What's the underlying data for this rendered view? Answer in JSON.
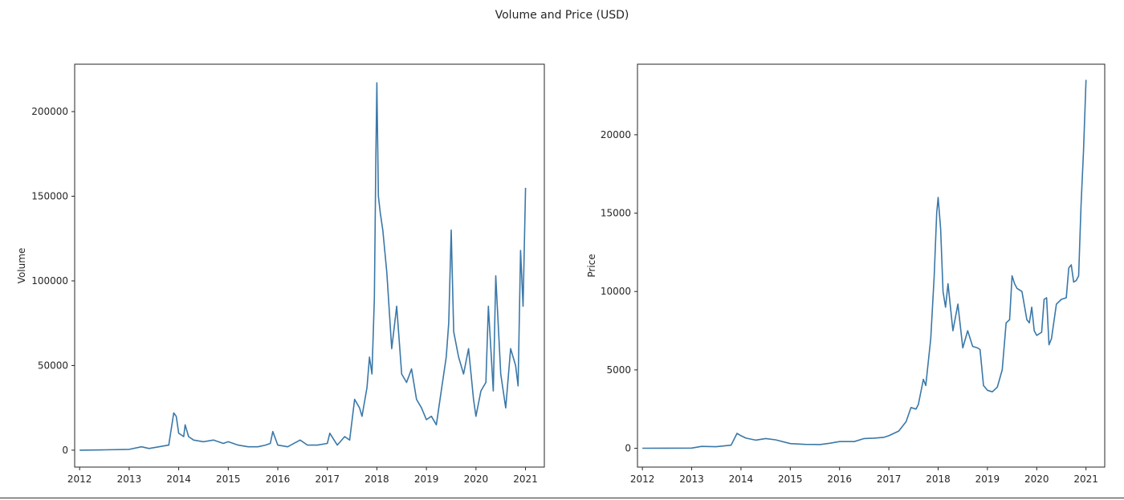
{
  "figure": {
    "title": "Volume and Price (USD)",
    "line_color": "#3a78a8"
  },
  "chart_data": [
    {
      "type": "line",
      "title": "",
      "xlabel": "",
      "ylabel": "Volume",
      "xlim": [
        2011.9,
        2021.38
      ],
      "ylim": [
        -10000,
        228000
      ],
      "x_ticks": [
        "2012",
        "2013",
        "2014",
        "2015",
        "2016",
        "2017",
        "2018",
        "2019",
        "2020",
        "2021"
      ],
      "y_ticks": [
        0,
        50000,
        100000,
        150000,
        200000
      ],
      "grid": false,
      "series": [
        {
          "x": [
            2012.0,
            2012.5,
            2013.0,
            2013.25,
            2013.4,
            2013.6,
            2013.8,
            2013.9,
            2013.95,
            2014.0,
            2014.05,
            2014.1,
            2014.13,
            2014.2,
            2014.3,
            2014.5,
            2014.7,
            2014.9,
            2015.0,
            2015.2,
            2015.4,
            2015.6,
            2015.75,
            2015.85,
            2015.9,
            2016.0,
            2016.2,
            2016.45,
            2016.6,
            2016.8,
            2017.0,
            2017.05,
            2017.2,
            2017.35,
            2017.45,
            2017.55,
            2017.65,
            2017.7,
            2017.8,
            2017.85,
            2017.9,
            2017.95,
            2017.98,
            2018.0,
            2018.03,
            2018.07,
            2018.12,
            2018.2,
            2018.3,
            2018.4,
            2018.5,
            2018.6,
            2018.7,
            2018.8,
            2018.9,
            2019.0,
            2019.1,
            2019.2,
            2019.3,
            2019.4,
            2019.45,
            2019.5,
            2019.55,
            2019.65,
            2019.75,
            2019.85,
            2019.95,
            2020.0,
            2020.1,
            2020.2,
            2020.25,
            2020.35,
            2020.4,
            2020.5,
            2020.6,
            2020.7,
            2020.8,
            2020.85,
            2020.9,
            2020.95,
            2021.0
          ],
          "y": [
            0,
            200,
            500,
            2000,
            1000,
            2000,
            3000,
            22000,
            20000,
            10000,
            9000,
            8000,
            15000,
            8000,
            6000,
            5000,
            6000,
            4000,
            5000,
            3000,
            2000,
            2000,
            3000,
            4000,
            11000,
            3000,
            2000,
            6000,
            3000,
            3000,
            4000,
            10000,
            3000,
            8000,
            6000,
            30000,
            25000,
            20000,
            37000,
            55000,
            45000,
            90000,
            175000,
            217000,
            150000,
            140000,
            130000,
            105000,
            60000,
            85000,
            45000,
            40000,
            48000,
            30000,
            25000,
            18000,
            20000,
            15000,
            35000,
            55000,
            75000,
            130000,
            70000,
            55000,
            45000,
            60000,
            30000,
            20000,
            35000,
            40000,
            85000,
            35000,
            103000,
            45000,
            25000,
            60000,
            50000,
            38000,
            118000,
            85000,
            155000
          ]
        }
      ]
    },
    {
      "type": "line",
      "title": "",
      "xlabel": "",
      "ylabel": "Price",
      "xlim": [
        2011.9,
        2021.38
      ],
      "ylim": [
        -1200,
        24500
      ],
      "x_ticks": [
        "2012",
        "2013",
        "2014",
        "2015",
        "2016",
        "2017",
        "2018",
        "2019",
        "2020",
        "2021"
      ],
      "y_ticks": [
        0,
        5000,
        10000,
        15000,
        20000
      ],
      "grid": false,
      "series": [
        {
          "x": [
            2012.0,
            2012.5,
            2013.0,
            2013.2,
            2013.5,
            2013.8,
            2013.92,
            2014.0,
            2014.1,
            2014.3,
            2014.5,
            2014.7,
            2015.0,
            2015.3,
            2015.6,
            2015.8,
            2016.0,
            2016.3,
            2016.5,
            2016.7,
            2016.9,
            2017.0,
            2017.2,
            2017.35,
            2017.45,
            2017.55,
            2017.6,
            2017.7,
            2017.75,
            2017.8,
            2017.85,
            2017.92,
            2017.97,
            2018.0,
            2018.05,
            2018.1,
            2018.15,
            2018.2,
            2018.3,
            2018.4,
            2018.5,
            2018.6,
            2018.7,
            2018.8,
            2018.85,
            2018.92,
            2019.0,
            2019.1,
            2019.2,
            2019.3,
            2019.38,
            2019.45,
            2019.5,
            2019.55,
            2019.6,
            2019.7,
            2019.8,
            2019.85,
            2019.9,
            2019.95,
            2020.0,
            2020.1,
            2020.15,
            2020.2,
            2020.25,
            2020.3,
            2020.4,
            2020.5,
            2020.6,
            2020.65,
            2020.7,
            2020.75,
            2020.8,
            2020.85,
            2020.9,
            2020.95,
            2021.0
          ],
          "y": [
            5,
            6,
            15,
            120,
            100,
            200,
            950,
            800,
            650,
            520,
            620,
            540,
            300,
            250,
            240,
            320,
            430,
            430,
            620,
            650,
            700,
            800,
            1100,
            1700,
            2600,
            2500,
            2800,
            4400,
            4000,
            5500,
            7000,
            11000,
            15000,
            16000,
            14000,
            10000,
            9000,
            10500,
            7500,
            9200,
            6400,
            7500,
            6500,
            6400,
            6300,
            4000,
            3700,
            3600,
            3900,
            5000,
            8000,
            8200,
            11000,
            10500,
            10200,
            10000,
            8200,
            8000,
            9000,
            7500,
            7200,
            7400,
            9500,
            9600,
            6600,
            7000,
            9200,
            9500,
            9600,
            11500,
            11700,
            10600,
            10700,
            11000,
            15500,
            19000,
            23500
          ]
        }
      ]
    }
  ]
}
